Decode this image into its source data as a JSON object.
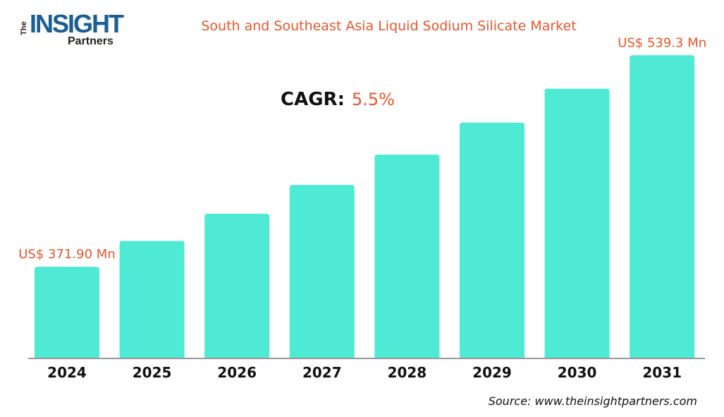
{
  "logo": {
    "text": "The INSIGHT Partners"
  },
  "chart_data": {
    "type": "bar",
    "title": "South and Southeast Asia Liquid Sodium Silicate Market",
    "categories": [
      "2024",
      "2025",
      "2026",
      "2027",
      "2028",
      "2029",
      "2030",
      "2031"
    ],
    "values": [
      371.9,
      392.4,
      413.9,
      436.7,
      460.7,
      486.0,
      512.8,
      539.3
    ],
    "data_labels": {
      "2024": "US$ 371.90 Mn",
      "2031": "US$ 539.3 Mn"
    },
    "annotation": {
      "label": "CAGR:",
      "value": "5.5%"
    },
    "ylim": [
      300,
      540
    ],
    "xlabel": "",
    "ylabel": "",
    "grid": false,
    "legend": "none",
    "colors": {
      "bar": "#4eead3",
      "accent": "#e8562a"
    }
  },
  "source": "Source: www.theinsightpartners.com"
}
